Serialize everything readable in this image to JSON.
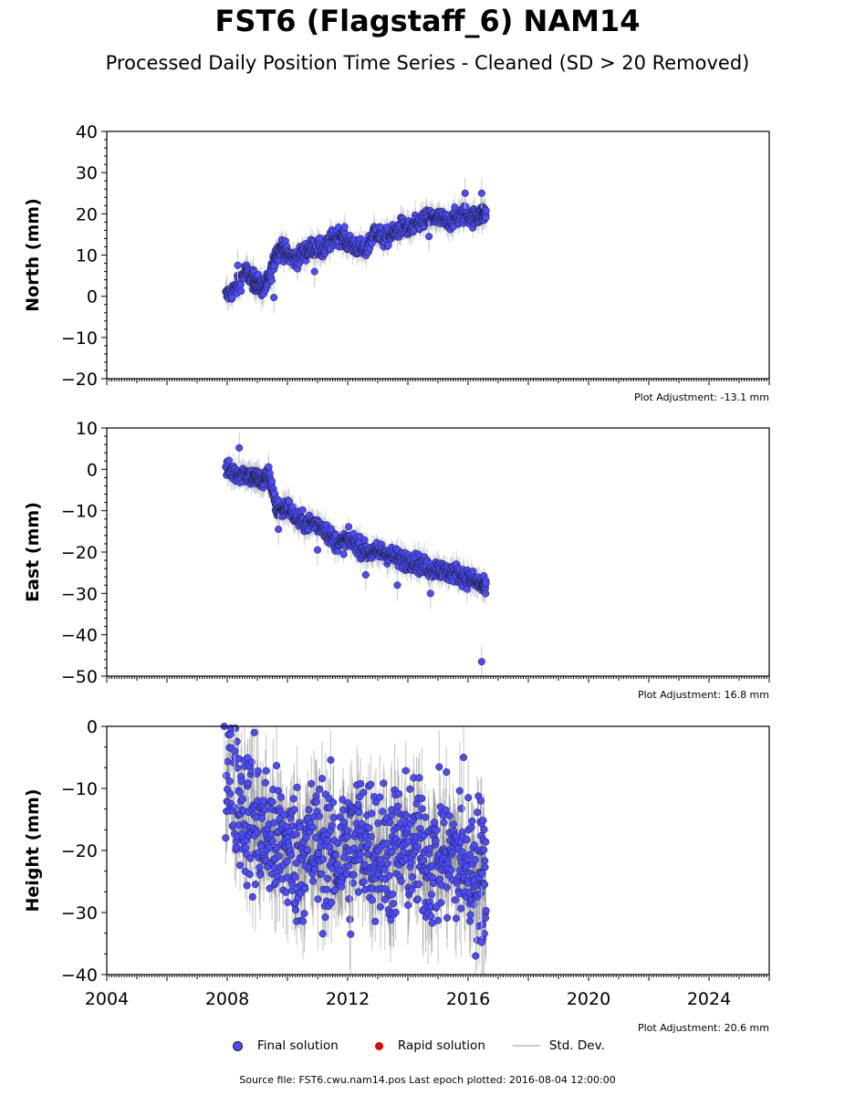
{
  "title": "FST6 (Flagstaff_6) NAM14",
  "subtitle": "Processed Daily Position Time Series - Cleaned (SD > 20 Removed)",
  "footer": "Source file: FST6.cwu.nam14.pos  Last epoch plotted: 2016-08-04 12:00:00",
  "legend": {
    "final": "Final solution",
    "rapid": "Rapid solution",
    "std": "Std. Dev."
  },
  "colors": {
    "final": "#4b4bff",
    "final_edge": "#1a1a1a",
    "rapid": "#e00000",
    "stddev": "#c8c8c8"
  },
  "chart_data": [
    {
      "type": "scatter",
      "ylabel": "North (mm)",
      "adjustment": "Plot Adjustment: -13.1 mm",
      "xlim": [
        2004,
        2026
      ],
      "ylim": [
        -20,
        40
      ],
      "yticks": [
        -20,
        -10,
        0,
        10,
        20,
        30,
        40
      ],
      "show_xtick_labels": false,
      "series": [
        {
          "name": "Final solution",
          "x": [
            2007.95,
            2008.3,
            2008.6,
            2008.85,
            2009.0,
            2009.2,
            2009.4,
            2009.6,
            2009.8,
            2010.0,
            2010.3,
            2010.6,
            2010.9,
            2011.2,
            2011.5,
            2011.8,
            2012.0,
            2012.3,
            2012.6,
            2012.9,
            2013.2,
            2013.5,
            2013.8,
            2014.1,
            2014.4,
            2014.7,
            2015.0,
            2015.3,
            2015.6,
            2015.9,
            2016.2,
            2016.45,
            2016.6
          ],
          "y": [
            0,
            2,
            6,
            4,
            3,
            2,
            4,
            10,
            12,
            10,
            9,
            11,
            12,
            11,
            14,
            15,
            13,
            12,
            11,
            16,
            14,
            15,
            17,
            16,
            18,
            19,
            19,
            18,
            19,
            20,
            19,
            20,
            20
          ]
        }
      ],
      "outliers": [
        [
          2008.35,
          7.5
        ],
        [
          2009.55,
          -0.3
        ],
        [
          2010.9,
          6.0
        ],
        [
          2014.7,
          14.5
        ],
        [
          2015.9,
          25.0
        ],
        [
          2016.45,
          25.0
        ]
      ]
    },
    {
      "type": "scatter",
      "ylabel": "East (mm)",
      "adjustment": "Plot Adjustment: 16.8 mm",
      "xlim": [
        2004,
        2026
      ],
      "ylim": [
        -50,
        10
      ],
      "yticks": [
        -50,
        -40,
        -30,
        -20,
        -10,
        0,
        10
      ],
      "show_xtick_labels": false,
      "series": [
        {
          "name": "Final solution",
          "x": [
            2007.95,
            2008.3,
            2008.6,
            2008.85,
            2009.0,
            2009.2,
            2009.4,
            2009.6,
            2009.8,
            2010.0,
            2010.3,
            2010.6,
            2010.9,
            2011.2,
            2011.5,
            2011.8,
            2012.0,
            2012.3,
            2012.6,
            2012.9,
            2013.2,
            2013.5,
            2013.8,
            2014.1,
            2014.4,
            2014.7,
            2015.0,
            2015.3,
            2015.6,
            2015.9,
            2016.2,
            2016.45,
            2016.6
          ],
          "y": [
            0,
            -1,
            -1,
            -2,
            -2,
            -3,
            -1,
            -9,
            -10,
            -9,
            -12,
            -13,
            -13,
            -14,
            -17,
            -18,
            -17,
            -18,
            -20,
            -20,
            -20,
            -21,
            -22,
            -22,
            -23,
            -24,
            -24,
            -25,
            -25,
            -26,
            -27,
            -28,
            -29
          ]
        }
      ],
      "outliers": [
        [
          2008.4,
          5.2
        ],
        [
          2009.7,
          -14.5
        ],
        [
          2011.0,
          -19.5
        ],
        [
          2012.6,
          -25.5
        ],
        [
          2013.65,
          -28.0
        ],
        [
          2014.75,
          -30.0
        ],
        [
          2016.45,
          -46.5
        ]
      ]
    },
    {
      "type": "scatter",
      "ylabel": "Height (mm)",
      "adjustment": "Plot Adjustment: 20.6 mm",
      "xlabel": "",
      "xlim": [
        2004,
        2026
      ],
      "ylim": [
        -40,
        0
      ],
      "yticks": [
        -40,
        -30,
        -20,
        -10,
        0
      ],
      "xticks": [
        2004,
        2008,
        2012,
        2016,
        2020,
        2024
      ],
      "show_xtick_labels": true,
      "series": [
        {
          "name": "Final solution",
          "x": [
            2007.95,
            2008.3,
            2008.6,
            2008.9,
            2009.2,
            2009.5,
            2009.8,
            2010.1,
            2010.4,
            2010.7,
            2011.0,
            2011.3,
            2011.6,
            2011.9,
            2012.2,
            2012.5,
            2012.8,
            2013.1,
            2013.4,
            2013.7,
            2014.0,
            2014.3,
            2014.6,
            2014.9,
            2015.2,
            2015.5,
            2015.8,
            2016.1,
            2016.4,
            2016.6
          ],
          "y": [
            -8,
            -10,
            -14,
            -16,
            -17,
            -18,
            -19,
            -20,
            -21,
            -20,
            -19,
            -20,
            -21,
            -20,
            -19,
            -18,
            -19,
            -20,
            -21,
            -20,
            -19,
            -20,
            -21,
            -22,
            -20,
            -21,
            -22,
            -23,
            -22,
            -24
          ]
        }
      ],
      "outliers": [
        [
          2007.9,
          0.0
        ],
        [
          2008.25,
          -4.0
        ],
        [
          2008.9,
          -1.0
        ],
        [
          2012.1,
          -33.5
        ],
        [
          2015.85,
          -5.0
        ],
        [
          2016.25,
          -37.0
        ],
        [
          2016.45,
          -34.8
        ]
      ]
    }
  ]
}
